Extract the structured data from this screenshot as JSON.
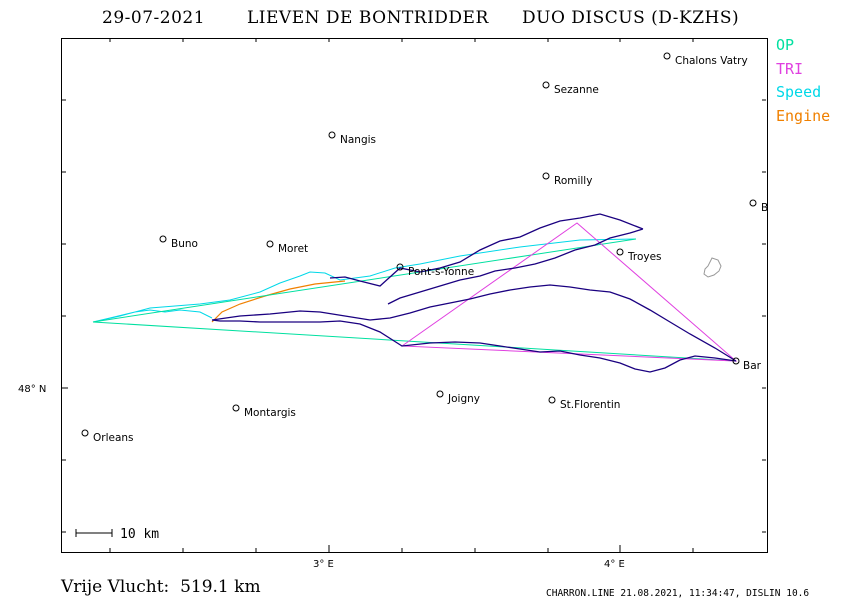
{
  "header": {
    "date": "29-07-2021",
    "pilot": "LIEVEN DE BONTRIDDER",
    "glider": "DUO DISCUS (D-KZHS)"
  },
  "legend": {
    "op": {
      "label": "OP",
      "color": "#00e0a0"
    },
    "tri": {
      "label": "TRI",
      "color": "#e040e0"
    },
    "speed": {
      "label": "Speed",
      "color": "#00d8e8"
    },
    "engine": {
      "label": "Engine",
      "color": "#f08000"
    }
  },
  "track_color": "#1a0080",
  "axes": {
    "lat_label": "48° N",
    "lon_labels": [
      "3° E",
      "4° E"
    ]
  },
  "towns": [
    {
      "name": "Chalons Vatry"
    },
    {
      "name": "Sezanne"
    },
    {
      "name": "Nangis"
    },
    {
      "name": "Romilly"
    },
    {
      "name": "B"
    },
    {
      "name": "Buno"
    },
    {
      "name": "Moret"
    },
    {
      "name": "Troyes"
    },
    {
      "name": "Pont-s-Yonne"
    },
    {
      "name": "Bar"
    },
    {
      "name": "Joigny"
    },
    {
      "name": "Montargis"
    },
    {
      "name": "St.Florentin"
    },
    {
      "name": "Orleans"
    }
  ],
  "scale": {
    "label": "10  km"
  },
  "footer": {
    "distance": "Vrije Vlucht:  519.1 km",
    "credits": "CHARRON.LINE 21.08.2021, 11:34:47, DISLIN 10.6"
  }
}
